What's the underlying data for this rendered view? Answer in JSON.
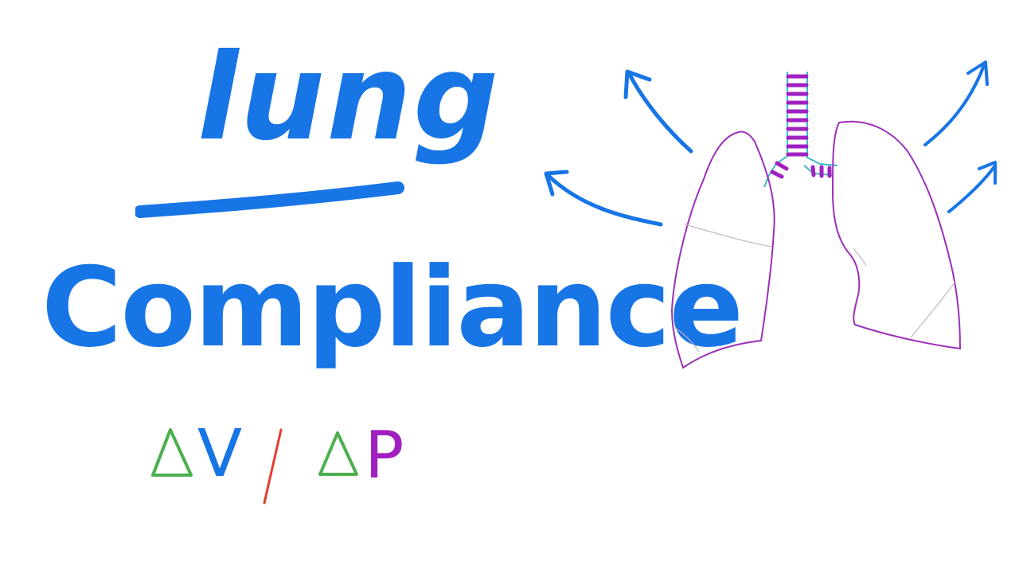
{
  "title": {
    "word1": "lung",
    "word2": "Compliance"
  },
  "formula": {
    "numerator": "V",
    "denominator": "P"
  },
  "colors": {
    "title": "#1775e6",
    "delta": "#4caf50",
    "slash": "#e0402e",
    "pressure": "#a020c0",
    "lung_outline": "#9b30b8",
    "trachea_outline": "#3fb8c8",
    "fissure": "#c4b4c8",
    "arrow": "#1775e6"
  },
  "icons": [
    "up-left-arrow-icon",
    "left-arrow-icon",
    "up-right-arrow-icon",
    "right-arrow-icon",
    "lungs-icon",
    "delta-icon"
  ]
}
